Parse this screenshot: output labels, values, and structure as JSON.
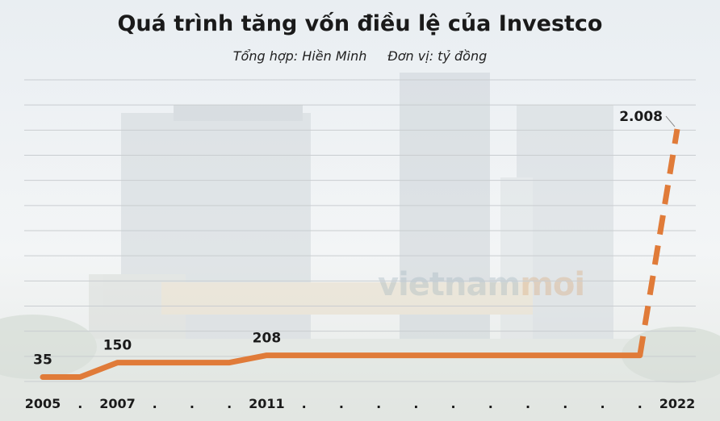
{
  "header": {
    "title": "Quá trình tăng vốn điều lệ của Investco",
    "source": "Tổng hợp: Hiền Minh",
    "unit": "Đơn vị: tỷ đồng"
  },
  "watermark": {
    "part1": "vietnam",
    "part2": "moi"
  },
  "colors": {
    "line": "#e07b39",
    "grid": "#c9cdd0",
    "text": "#1a1a1a"
  },
  "chart_data": {
    "type": "line",
    "title": "Quá trình tăng vốn điều lệ của Investco",
    "subtitle": "Tổng hợp: Hiền Minh    Đơn vị: tỷ đồng",
    "categories": [
      "2005",
      ".",
      "2007",
      ".",
      ".",
      ".",
      "2011",
      ".",
      ".",
      ".",
      ".",
      ".",
      ".",
      ".",
      ".",
      ".",
      ".",
      "2022"
    ],
    "series": [
      {
        "values": [
          35,
          35,
          150,
          150,
          150,
          150,
          208,
          208,
          208,
          208,
          208,
          208,
          208,
          208,
          208,
          208,
          208,
          2008
        ]
      }
    ],
    "data_labels": [
      {
        "index": 0,
        "text": "35"
      },
      {
        "index": 2,
        "text": "150"
      },
      {
        "index": 6,
        "text": "208"
      },
      {
        "index": 17,
        "text": "2.008"
      }
    ],
    "dashed_from_index": 16,
    "ylim": [
      0,
      2400
    ],
    "grid": true,
    "legend": "none"
  }
}
